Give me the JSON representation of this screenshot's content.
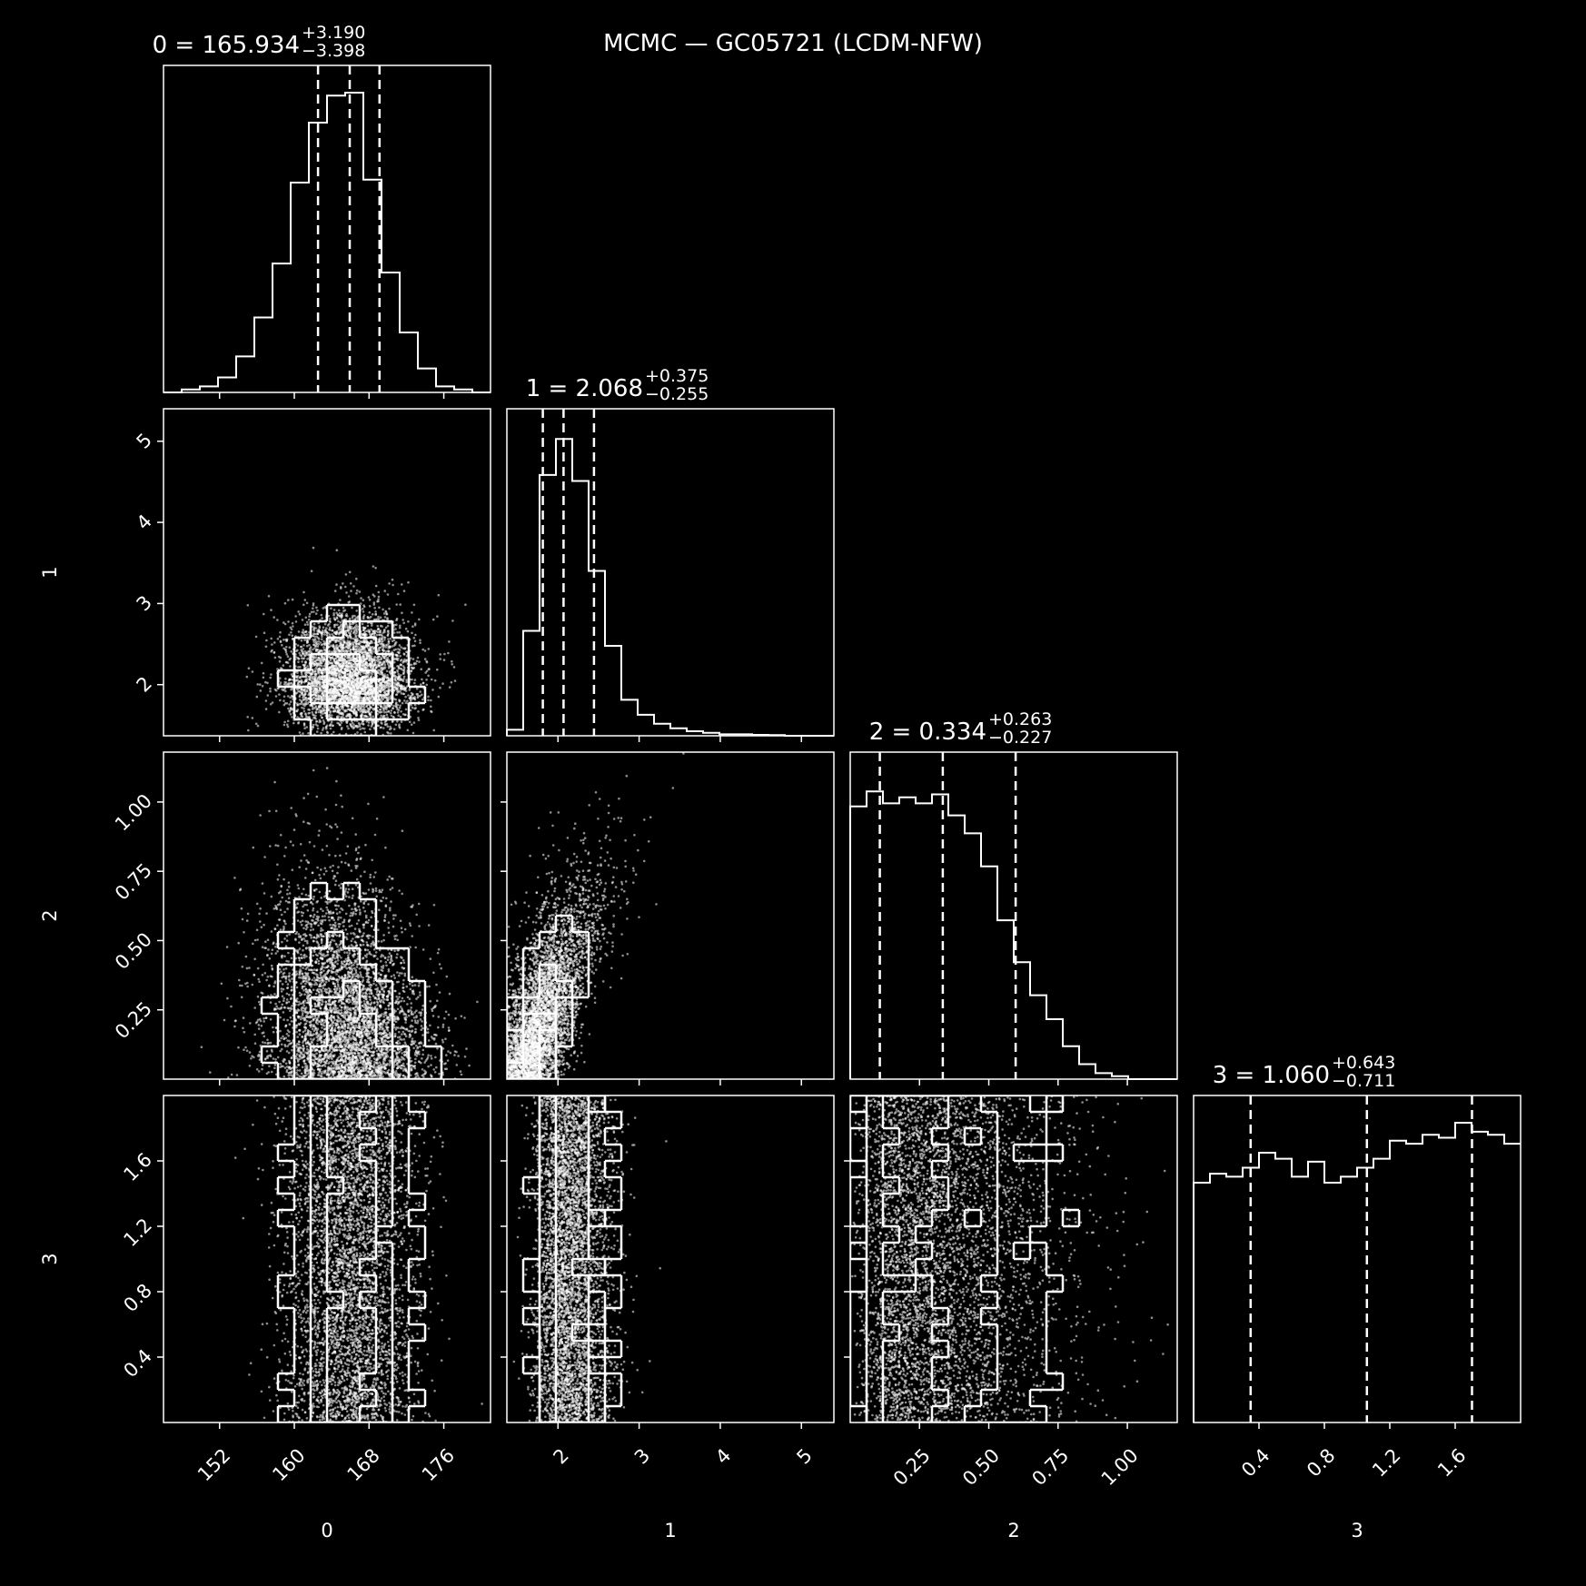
{
  "chart_data": {
    "type": "corner",
    "title": "MCMC — GC05721 (LCDM-NFW)",
    "theme": {
      "background": "#000000",
      "foreground": "#ffffff"
    },
    "parameters": [
      {
        "label": "0",
        "range": [
          146,
          181
        ],
        "ticks": [
          152,
          160,
          168,
          176
        ],
        "tick_labels": [
          "152",
          "160",
          "168",
          "176"
        ],
        "title": {
          "prefix": "0 = ",
          "value": "165.934",
          "upper": "+3.190",
          "lower": "−3.398"
        },
        "quantiles": [
          162.536,
          165.934,
          169.124
        ],
        "hist": [
          0.0,
          0.01,
          0.02,
          0.05,
          0.12,
          0.25,
          0.43,
          0.7,
          0.9,
          0.99,
          1.0,
          0.71,
          0.4,
          0.2,
          0.08,
          0.02,
          0.01,
          0.0
        ]
      },
      {
        "label": "1",
        "range": [
          1.37,
          5.4
        ],
        "ticks": [
          2,
          3,
          4,
          5
        ],
        "tick_labels": [
          "2",
          "3",
          "4",
          "5"
        ],
        "title": {
          "prefix": "1 = ",
          "value": "2.068",
          "upper": "+0.375",
          "lower": "−0.255"
        },
        "quantiles": [
          1.813,
          2.068,
          2.443
        ],
        "hist": [
          0.02,
          0.35,
          0.87,
          0.99,
          0.85,
          0.55,
          0.3,
          0.12,
          0.07,
          0.04,
          0.025,
          0.015,
          0.01,
          0.005,
          0.005,
          0.003,
          0.002,
          0.0,
          0.0,
          0.0
        ]
      },
      {
        "label": "2",
        "range": [
          0.0,
          1.18
        ],
        "ticks": [
          0.25,
          0.5,
          0.75,
          1.0
        ],
        "tick_labels": [
          "0.25",
          "0.50",
          "0.75",
          "1.00"
        ],
        "title": {
          "prefix": "2 = ",
          "value": "0.334",
          "upper": "+0.263",
          "lower": "−0.227"
        },
        "quantiles": [
          0.107,
          0.334,
          0.597
        ],
        "hist": [
          0.91,
          0.96,
          0.92,
          0.94,
          0.92,
          0.95,
          0.88,
          0.82,
          0.71,
          0.53,
          0.39,
          0.28,
          0.2,
          0.11,
          0.05,
          0.02,
          0.01,
          0.0,
          0.0,
          0.0
        ]
      },
      {
        "label": "3",
        "range": [
          0.0,
          2.0
        ],
        "ticks": [
          0.4,
          0.8,
          1.2,
          1.6
        ],
        "tick_labels": [
          "0.4",
          "0.8",
          "1.2",
          "1.6"
        ],
        "title": {
          "prefix": "3 = ",
          "value": "1.060",
          "upper": "+0.643",
          "lower": "−0.711"
        },
        "quantiles": [
          0.349,
          1.06,
          1.703
        ],
        "hist": [
          0.8,
          0.83,
          0.82,
          0.85,
          0.9,
          0.88,
          0.82,
          0.87,
          0.8,
          0.82,
          0.85,
          0.88,
          0.94,
          0.93,
          0.96,
          0.95,
          1.0,
          0.97,
          0.96,
          0.93
        ]
      }
    ],
    "panels_2d": [
      {
        "x": 0,
        "y": 1,
        "center": [
          166.0,
          2.07
        ],
        "sd": [
          3.4,
          0.3
        ],
        "correlation": 0.0,
        "shape": "gaussian"
      },
      {
        "x": 0,
        "y": 2,
        "center": [
          166.5,
          0.0
        ],
        "sd": [
          3.4,
          0.33
        ],
        "correlation": -0.2,
        "shape": "half-gaussian"
      },
      {
        "x": 1,
        "y": 2,
        "center": [
          1.85,
          0.0
        ],
        "sd": [
          0.3,
          0.32
        ],
        "correlation": 0.85,
        "shape": "curved-banana"
      },
      {
        "x": 0,
        "y": 3,
        "center": [
          166.0,
          1.0
        ],
        "sd": [
          3.4,
          1.0
        ],
        "correlation": 0.0,
        "shape": "uniform-y"
      },
      {
        "x": 1,
        "y": 3,
        "center": [
          2.07,
          1.0
        ],
        "sd": [
          0.3,
          1.0
        ],
        "correlation": 0.0,
        "shape": "uniform-y"
      },
      {
        "x": 2,
        "y": 3,
        "center": [
          0.3,
          1.0
        ],
        "sd": [
          0.3,
          1.0
        ],
        "correlation": 0.0,
        "shape": "half-uniform"
      }
    ]
  }
}
